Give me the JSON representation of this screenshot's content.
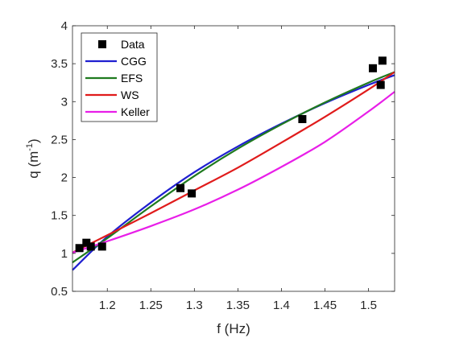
{
  "chart_data": {
    "type": "line",
    "title": "",
    "xlabel": "f (Hz)",
    "ylabel_main": "q (m",
    "ylabel_sup": "-1",
    "ylabel_close": ")",
    "xlim": [
      1.16,
      1.53
    ],
    "ylim": [
      0.5,
      4
    ],
    "xticks": [
      1.2,
      1.25,
      1.3,
      1.35,
      1.4,
      1.45,
      1.5
    ],
    "xtick_labels": [
      "1.2",
      "1.25",
      "1.3",
      "1.35",
      "1.4",
      "1.45",
      "1.5"
    ],
    "yticks": [
      0.5,
      1,
      1.5,
      2,
      2.5,
      3,
      3.5,
      4
    ],
    "ytick_labels": [
      "0.5",
      "1",
      "1.5",
      "2",
      "2.5",
      "3",
      "3.5",
      "4"
    ],
    "legend_position": "top-left",
    "points": {
      "name": "Data",
      "color": "#000000",
      "x": [
        1.168,
        1.176,
        1.181,
        1.194,
        1.284,
        1.297,
        1.424,
        1.505,
        1.514,
        1.516
      ],
      "y": [
        1.07,
        1.14,
        1.09,
        1.09,
        1.86,
        1.79,
        2.77,
        3.44,
        3.22,
        3.54
      ]
    },
    "series": [
      {
        "name": "CGG",
        "color": "#1f1fd0",
        "x": [
          1.16,
          1.2,
          1.25,
          1.3,
          1.35,
          1.4,
          1.45,
          1.5,
          1.53
        ],
        "y": [
          0.78,
          1.22,
          1.67,
          2.07,
          2.41,
          2.71,
          2.98,
          3.22,
          3.35
        ]
      },
      {
        "name": "EFS",
        "color": "#1f7a1f",
        "x": [
          1.16,
          1.2,
          1.25,
          1.3,
          1.35,
          1.4,
          1.45,
          1.5,
          1.53
        ],
        "y": [
          0.88,
          1.2,
          1.62,
          2.02,
          2.38,
          2.7,
          2.99,
          3.25,
          3.39
        ]
      },
      {
        "name": "WS",
        "color": "#e01b1b",
        "x": [
          1.16,
          1.2,
          1.25,
          1.3,
          1.35,
          1.4,
          1.45,
          1.5,
          1.53
        ],
        "y": [
          1.01,
          1.24,
          1.53,
          1.83,
          2.13,
          2.46,
          2.8,
          3.16,
          3.39
        ]
      },
      {
        "name": "Keller",
        "color": "#e81ee8",
        "x": [
          1.16,
          1.2,
          1.25,
          1.3,
          1.35,
          1.4,
          1.45,
          1.5,
          1.53
        ],
        "y": [
          1.01,
          1.16,
          1.36,
          1.58,
          1.84,
          2.14,
          2.47,
          2.87,
          3.13
        ]
      }
    ]
  }
}
